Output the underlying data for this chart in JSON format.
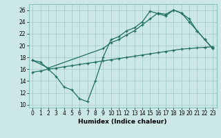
{
  "xlabel": "Humidex (Indice chaleur)",
  "bg_color": "#cce8e6",
  "grid_color": "#a0c8c4",
  "line_color": "#1e6e62",
  "xlim": [
    -0.5,
    23.5
  ],
  "ylim": [
    9.5,
    27.0
  ],
  "xticks": [
    0,
    1,
    2,
    3,
    4,
    5,
    6,
    7,
    8,
    9,
    10,
    11,
    12,
    13,
    14,
    15,
    16,
    17,
    18,
    19,
    20,
    21,
    22,
    23
  ],
  "yticks": [
    10,
    12,
    14,
    16,
    18,
    20,
    22,
    24,
    26
  ],
  "line1_x": [
    0,
    1,
    2,
    3,
    4,
    5,
    6,
    7,
    8,
    9,
    10,
    11,
    12,
    13,
    14,
    15,
    16,
    17,
    18,
    19,
    20,
    21,
    22,
    23
  ],
  "line1_y": [
    17.5,
    17.2,
    16.0,
    14.8,
    13.0,
    12.5,
    11.0,
    10.5,
    14.0,
    18.0,
    21.0,
    21.5,
    22.5,
    23.0,
    24.0,
    25.8,
    25.4,
    25.0,
    26.0,
    25.5,
    24.0,
    22.5,
    21.0,
    19.5
  ],
  "line2_x": [
    0,
    2,
    9,
    10,
    11,
    12,
    13,
    14,
    15,
    16,
    17,
    18,
    19,
    20,
    21,
    22,
    23
  ],
  "line2_y": [
    17.5,
    16.2,
    19.5,
    20.5,
    21.0,
    21.8,
    22.5,
    23.5,
    24.5,
    25.5,
    25.3,
    26.0,
    25.5,
    24.5,
    22.5,
    21.0,
    19.5
  ],
  "line3_x": [
    0,
    1,
    2,
    3,
    4,
    5,
    6,
    7,
    8,
    9,
    10,
    11,
    12,
    13,
    14,
    15,
    16,
    17,
    18,
    19,
    20,
    21,
    22,
    23
  ],
  "line3_y": [
    15.5,
    15.7,
    16.0,
    16.2,
    16.4,
    16.6,
    16.8,
    17.0,
    17.2,
    17.4,
    17.6,
    17.8,
    18.0,
    18.2,
    18.4,
    18.6,
    18.8,
    19.0,
    19.2,
    19.4,
    19.5,
    19.6,
    19.7,
    19.8
  ]
}
